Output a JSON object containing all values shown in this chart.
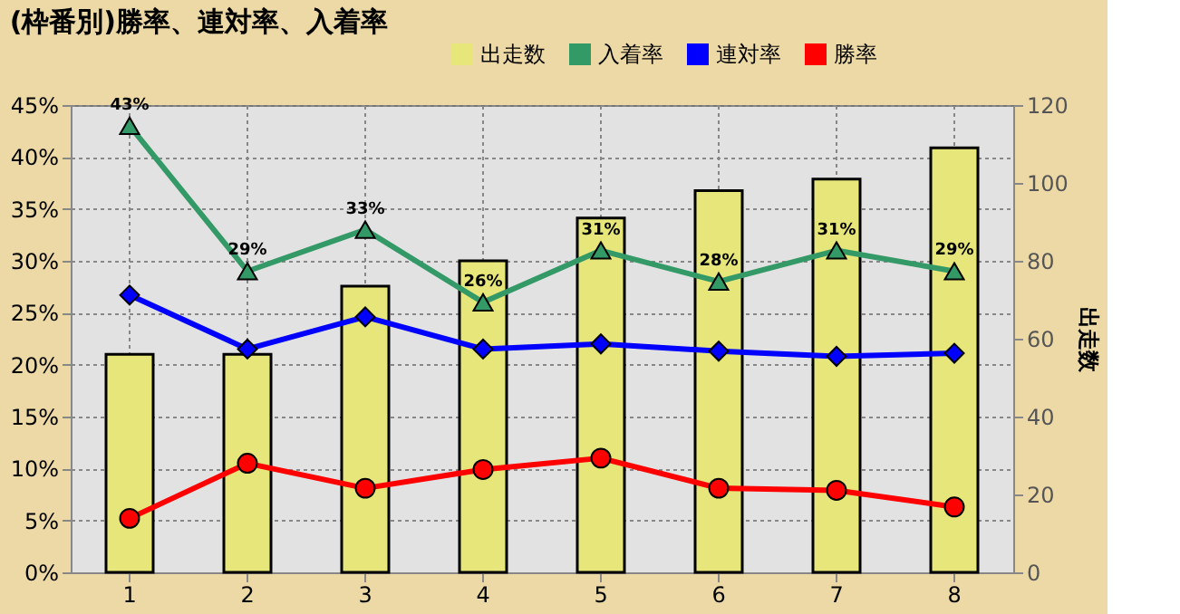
{
  "chart_data": {
    "type": "line",
    "title": "(枠番別)勝率、連対率、入着率",
    "y2label": "出走数",
    "categories": [
      "1",
      "2",
      "3",
      "4",
      "5",
      "6",
      "7",
      "8"
    ],
    "series": [
      {
        "name": "出走数",
        "type": "bar",
        "axis": "y2",
        "color": "#e6e67a",
        "values": [
          56,
          56,
          73.5,
          80,
          91,
          98,
          101,
          109
        ]
      },
      {
        "name": "入着率",
        "marker": "triangle",
        "color": "#339966",
        "values": [
          43,
          29,
          33,
          26,
          31,
          28,
          31,
          29
        ],
        "value_labels": [
          "43%",
          "29%",
          "33%",
          "26%",
          "31%",
          "28%",
          "31%",
          "29%"
        ]
      },
      {
        "name": "連対率",
        "marker": "diamond",
        "color": "#0000ff",
        "values": [
          26.7,
          21.5,
          24.6,
          21.5,
          22.0,
          21.3,
          20.8,
          21.1
        ]
      },
      {
        "name": "勝率",
        "marker": "circle",
        "color": "#ff0000",
        "values": [
          5.2,
          10.5,
          8.1,
          9.9,
          11.0,
          8.1,
          7.9,
          6.3
        ]
      }
    ],
    "ylim": [
      0,
      45
    ],
    "yticks": [
      {
        "value": 0,
        "label": "0%"
      },
      {
        "value": 5,
        "label": "5%"
      },
      {
        "value": 10,
        "label": "10%"
      },
      {
        "value": 15,
        "label": "15%"
      },
      {
        "value": 20,
        "label": "20%"
      },
      {
        "value": 25,
        "label": "25%"
      },
      {
        "value": 30,
        "label": "30%"
      },
      {
        "value": 35,
        "label": "35%"
      },
      {
        "value": 40,
        "label": "40%"
      },
      {
        "value": 45,
        "label": "45%"
      }
    ],
    "y2lim": [
      0,
      120
    ],
    "y2ticks": [
      0,
      20,
      40,
      60,
      80,
      100,
      120
    ],
    "grid": true,
    "legend": "top right"
  }
}
